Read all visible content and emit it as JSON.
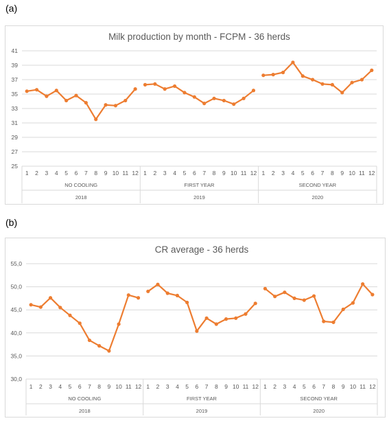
{
  "panels": [
    {
      "label": "(a)"
    },
    {
      "label": "(b)"
    }
  ],
  "colors": {
    "line": "#ED7D31",
    "grid": "#d9d9d9",
    "text": "#595959"
  },
  "chart_data": [
    {
      "type": "line",
      "title": "Milk production by month - FCPM - 36 herds",
      "ylim": [
        25,
        41
      ],
      "yticks": [
        "25",
        "27",
        "29",
        "31",
        "33",
        "35",
        "37",
        "39",
        "41"
      ],
      "ytick_values": [
        25,
        27,
        29,
        31,
        33,
        35,
        37,
        39,
        41
      ],
      "grid": true,
      "categories": [
        "1",
        "2",
        "3",
        "4",
        "5",
        "6",
        "7",
        "8",
        "9",
        "10",
        "11",
        "12",
        "1",
        "2",
        "3",
        "4",
        "5",
        "6",
        "7",
        "8",
        "9",
        "10",
        "11",
        "12",
        "1",
        "2",
        "3",
        "4",
        "5",
        "6",
        "7",
        "8",
        "9",
        "10",
        "11",
        "12"
      ],
      "group_labels": [
        "NO COOLING",
        "FIRST YEAR",
        "SECOND YEAR"
      ],
      "year_labels": [
        "2018",
        "2019",
        "2020"
      ],
      "series": [
        {
          "segments": [
            [
              35.4,
              35.6,
              34.7,
              35.5,
              34.1,
              34.8,
              33.8,
              31.5,
              33.5,
              33.4,
              34.1,
              35.7
            ],
            [
              36.3,
              36.4,
              35.7,
              36.1,
              35.2,
              34.6,
              33.7,
              34.4,
              34.1,
              33.6,
              34.4,
              35.5
            ],
            [
              37.6,
              37.7,
              38.0,
              39.4,
              37.5,
              37.0,
              36.4,
              36.3,
              35.2,
              36.6,
              37.0,
              38.3
            ]
          ]
        }
      ]
    },
    {
      "type": "line",
      "title": "CR average - 36 herds",
      "ylim": [
        30,
        55
      ],
      "yticks": [
        "30,0",
        "35,0",
        "40,0",
        "45,0",
        "50,0",
        "55,0"
      ],
      "ytick_values": [
        30,
        35,
        40,
        45,
        50,
        55
      ],
      "grid": true,
      "categories": [
        "1",
        "2",
        "3",
        "4",
        "5",
        "6",
        "7",
        "8",
        "9",
        "10",
        "11",
        "12",
        "1",
        "2",
        "3",
        "4",
        "5",
        "6",
        "7",
        "8",
        "9",
        "10",
        "11",
        "12",
        "1",
        "2",
        "3",
        "4",
        "5",
        "6",
        "7",
        "8",
        "9",
        "10",
        "11",
        "12"
      ],
      "group_labels": [
        "NO COOLING",
        "FIRST YEAR",
        "SECOND YEAR"
      ],
      "year_labels": [
        "2018",
        "2019",
        "2020"
      ],
      "series": [
        {
          "segments": [
            [
              46.1,
              45.6,
              47.6,
              45.5,
              43.8,
              42.1,
              38.4,
              37.2,
              36.1,
              41.9,
              48.2,
              47.6
            ],
            [
              49.0,
              50.5,
              48.6,
              48.1,
              46.6,
              40.4,
              43.2,
              41.9,
              43.0,
              43.2,
              44.1,
              46.4
            ],
            [
              49.6,
              47.9,
              48.8,
              47.5,
              47.1,
              48.0,
              42.5,
              42.3,
              45.1,
              46.5,
              50.6,
              48.3
            ]
          ]
        }
      ]
    }
  ]
}
